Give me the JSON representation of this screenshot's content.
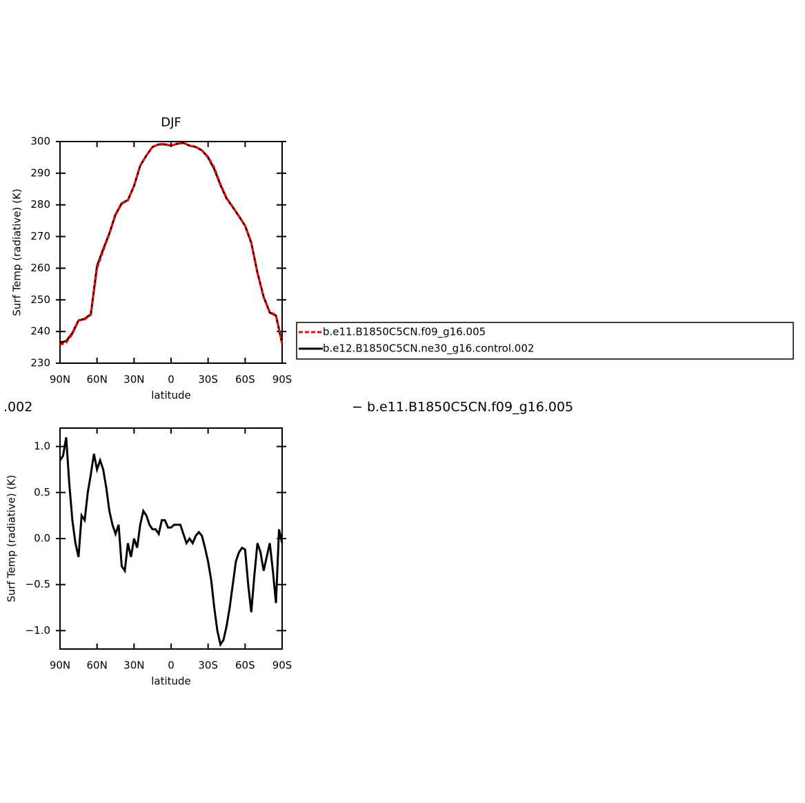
{
  "chart_data": [
    {
      "type": "line",
      "title": "DJF",
      "xlabel": "latitude",
      "ylabel": "Surf Temp (radiative) (K)",
      "x": [
        90,
        85,
        80,
        75,
        70,
        65,
        60,
        55,
        50,
        45,
        40,
        35,
        30,
        25,
        20,
        15,
        10,
        5,
        0,
        -5,
        -10,
        -15,
        -20,
        -25,
        -30,
        -35,
        -40,
        -45,
        -50,
        -55,
        -60,
        -65,
        -70,
        -75,
        -80,
        -85,
        -90
      ],
      "series": [
        {
          "name": "b.e11.B1850C5CN.f09_g16.005",
          "color": "#ff0000",
          "linestyle": "dashed",
          "values": [
            235.8,
            236.5,
            239.2,
            243.4,
            243.8,
            245.3,
            260.0,
            265.5,
            270.8,
            276.8,
            280.3,
            281.4,
            286.0,
            292.3,
            295.6,
            298.3,
            299.2,
            299.2,
            298.7,
            299.3,
            299.6,
            298.7,
            298.3,
            297.2,
            295.2,
            291.8,
            286.6,
            282.2,
            279.4,
            276.5,
            273.4,
            268.2,
            258.5,
            250.8,
            246.2,
            245.2,
            236.2
          ]
        },
        {
          "name": "b.e12.B1850C5CN.ne30_g16.control.002",
          "color": "#000000",
          "linestyle": "solid",
          "values": [
            236.5,
            237.0,
            239.5,
            243.5,
            244.0,
            245.5,
            260.7,
            266.0,
            271.0,
            277.0,
            280.5,
            281.5,
            286.0,
            292.4,
            295.6,
            298.3,
            299.1,
            299.1,
            298.7,
            299.3,
            299.6,
            298.7,
            298.3,
            297.2,
            295.0,
            291.3,
            286.3,
            282.0,
            279.3,
            276.4,
            273.4,
            268.0,
            258.6,
            251.0,
            246.0,
            245.0,
            236.3
          ]
        }
      ],
      "xlim": [
        90,
        -90
      ],
      "xticks": [
        {
          "value": 90,
          "label": "90N"
        },
        {
          "value": 60,
          "label": "60N"
        },
        {
          "value": 30,
          "label": "30N"
        },
        0,
        {
          "value": -30,
          "label": "30S"
        },
        {
          "value": -60,
          "label": "60S"
        },
        {
          "value": -90,
          "label": "90S"
        }
      ],
      "ylim": [
        230,
        300
      ],
      "yticks": [
        230,
        240,
        250,
        260,
        270,
        280,
        290,
        300
      ],
      "legend": "right"
    },
    {
      "type": "line",
      "xlabel": "latitude",
      "ylabel": "Surf Temp (radiative) (K)",
      "annotations": [
        ".002",
        "− b.e11.B1850C5CN.f09_g16.005"
      ],
      "x": [
        90,
        87.5,
        85,
        82.5,
        80,
        77.5,
        75,
        72.5,
        70,
        67.5,
        65,
        62.5,
        60,
        57.5,
        55,
        52.5,
        50,
        47.5,
        45,
        42.5,
        40,
        37.5,
        35,
        32.5,
        30,
        27.5,
        25,
        22.5,
        20,
        17.5,
        15,
        12.5,
        10,
        7.5,
        5,
        2.5,
        0,
        -2.5,
        -5,
        -7.5,
        -10,
        -12.5,
        -15,
        -17.5,
        -20,
        -22.5,
        -25,
        -27.5,
        -30,
        -32.5,
        -35,
        -37.5,
        -40,
        -42.5,
        -45,
        -47.5,
        -50,
        -52.5,
        -55,
        -57.5,
        -60,
        -62.5,
        -65,
        -67.5,
        -70,
        -72.5,
        -75,
        -77.5,
        -80,
        -82.5,
        -85,
        -87.5,
        -90
      ],
      "series": [
        {
          "color": "#000000",
          "linestyle": "solid",
          "values": [
            0.85,
            0.9,
            1.1,
            0.6,
            0.2,
            -0.05,
            -0.2,
            0.25,
            0.2,
            0.5,
            0.7,
            0.92,
            0.75,
            0.85,
            0.75,
            0.55,
            0.3,
            0.15,
            0.05,
            0.15,
            -0.3,
            -0.35,
            -0.05,
            -0.2,
            0.0,
            -0.1,
            0.15,
            0.3,
            0.25,
            0.15,
            0.1,
            0.1,
            0.05,
            0.2,
            0.2,
            0.12,
            0.12,
            0.15,
            0.15,
            0.15,
            0.05,
            -0.05,
            0.0,
            -0.05,
            0.03,
            0.07,
            0.03,
            -0.1,
            -0.25,
            -0.45,
            -0.75,
            -1.0,
            -1.15,
            -1.1,
            -0.95,
            -0.75,
            -0.5,
            -0.25,
            -0.15,
            -0.1,
            -0.12,
            -0.5,
            -0.8,
            -0.4,
            -0.05,
            -0.15,
            -0.35,
            -0.2,
            -0.05,
            -0.35,
            -0.7,
            0.1,
            -0.05
          ]
        }
      ],
      "xlim": [
        90,
        -90
      ],
      "xticks": [
        {
          "value": 90,
          "label": "90N"
        },
        {
          "value": 60,
          "label": "60N"
        },
        {
          "value": 30,
          "label": "30N"
        },
        0,
        {
          "value": -30,
          "label": "30S"
        },
        {
          "value": -60,
          "label": "60S"
        },
        {
          "value": -90,
          "label": "90S"
        }
      ],
      "ylim": [
        -1.2,
        1.2
      ],
      "yticks": [
        {
          "value": -1.0,
          "label": "−1.0"
        },
        {
          "value": -0.5,
          "label": "−0.5"
        },
        {
          "value": 0.0,
          "label": "0.0"
        },
        {
          "value": 0.5,
          "label": "0.5"
        },
        {
          "value": 1.0,
          "label": "1.0"
        }
      ]
    }
  ]
}
